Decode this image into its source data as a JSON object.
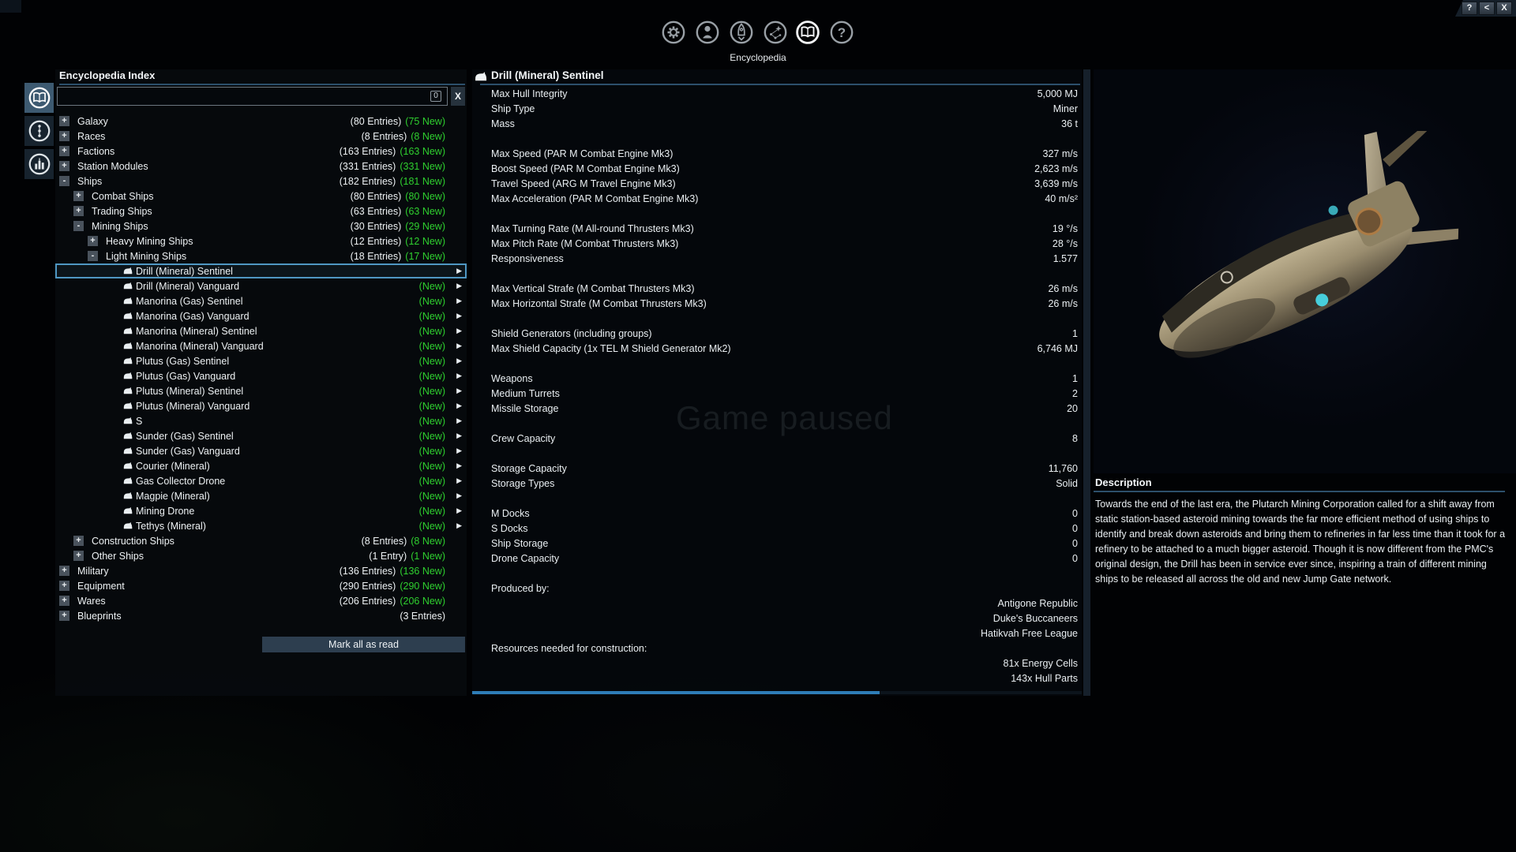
{
  "window": {
    "controls": [
      "?",
      "<",
      "X"
    ],
    "paused_text": "Game paused"
  },
  "menu": {
    "label": "Encyclopedia",
    "icons": [
      "gear-icon",
      "person-icon",
      "rocket-icon",
      "starmap-icon",
      "open-book-icon",
      "help-icon"
    ],
    "active_icon": "open-book-icon"
  },
  "sidebar_tabs": [
    "encyclopedia-book-icon",
    "waypoint-dots-icon",
    "landmark-icon"
  ],
  "index": {
    "title": "Encyclopedia Index",
    "search": {
      "value": "",
      "badge": "0",
      "clear_label": "X"
    },
    "mark_all_label": "Mark all as read",
    "tree": [
      {
        "label": "Galaxy",
        "level": 0,
        "expander": "+",
        "ship": false,
        "entries": "(80 Entries)",
        "new_count": "(75 New)",
        "selected": false,
        "arrow": false
      },
      {
        "label": "Races",
        "level": 0,
        "expander": "+",
        "ship": false,
        "entries": "(8 Entries)",
        "new_count": "(8 New)",
        "selected": false,
        "arrow": false
      },
      {
        "label": "Factions",
        "level": 0,
        "expander": "+",
        "ship": false,
        "entries": "(163 Entries)",
        "new_count": "(163 New)",
        "selected": false,
        "arrow": false
      },
      {
        "label": "Station Modules",
        "level": 0,
        "expander": "+",
        "ship": false,
        "entries": "(331 Entries)",
        "new_count": "(331 New)",
        "selected": false,
        "arrow": false
      },
      {
        "label": "Ships",
        "level": 0,
        "expander": "-",
        "ship": false,
        "entries": "(182 Entries)",
        "new_count": "(181 New)",
        "selected": false,
        "arrow": false
      },
      {
        "label": "Combat Ships",
        "level": 1,
        "expander": "+",
        "ship": false,
        "entries": "(80 Entries)",
        "new_count": "(80 New)",
        "selected": false,
        "arrow": false
      },
      {
        "label": "Trading Ships",
        "level": 1,
        "expander": "+",
        "ship": false,
        "entries": "(63 Entries)",
        "new_count": "(63 New)",
        "selected": false,
        "arrow": false
      },
      {
        "label": "Mining Ships",
        "level": 1,
        "expander": "-",
        "ship": false,
        "entries": "(30 Entries)",
        "new_count": "(29 New)",
        "selected": false,
        "arrow": false
      },
      {
        "label": "Heavy Mining Ships",
        "level": 2,
        "expander": "+",
        "ship": false,
        "entries": "(12 Entries)",
        "new_count": "(12 New)",
        "selected": false,
        "arrow": false
      },
      {
        "label": "Light Mining Ships",
        "level": 2,
        "expander": "-",
        "ship": false,
        "entries": "(18 Entries)",
        "new_count": "(17 New)",
        "selected": false,
        "arrow": false
      },
      {
        "label": "Drill (Mineral) Sentinel",
        "level": 3,
        "expander": "",
        "ship": true,
        "entries": "",
        "new_count": "",
        "selected": true,
        "arrow": true
      },
      {
        "label": "Drill (Mineral) Vanguard",
        "level": 3,
        "expander": "",
        "ship": true,
        "entries": "",
        "new_count": "(New)",
        "selected": false,
        "arrow": true
      },
      {
        "label": "Manorina (Gas) Sentinel",
        "level": 3,
        "expander": "",
        "ship": true,
        "entries": "",
        "new_count": "(New)",
        "selected": false,
        "arrow": true
      },
      {
        "label": "Manorina (Gas) Vanguard",
        "level": 3,
        "expander": "",
        "ship": true,
        "entries": "",
        "new_count": "(New)",
        "selected": false,
        "arrow": true
      },
      {
        "label": "Manorina (Mineral) Sentinel",
        "level": 3,
        "expander": "",
        "ship": true,
        "entries": "",
        "new_count": "(New)",
        "selected": false,
        "arrow": true
      },
      {
        "label": "Manorina (Mineral) Vanguard",
        "level": 3,
        "expander": "",
        "ship": true,
        "entries": "",
        "new_count": "(New)",
        "selected": false,
        "arrow": true
      },
      {
        "label": "Plutus (Gas) Sentinel",
        "level": 3,
        "expander": "",
        "ship": true,
        "entries": "",
        "new_count": "(New)",
        "selected": false,
        "arrow": true
      },
      {
        "label": "Plutus (Gas) Vanguard",
        "level": 3,
        "expander": "",
        "ship": true,
        "entries": "",
        "new_count": "(New)",
        "selected": false,
        "arrow": true
      },
      {
        "label": "Plutus (Mineral) Sentinel",
        "level": 3,
        "expander": "",
        "ship": true,
        "entries": "",
        "new_count": "(New)",
        "selected": false,
        "arrow": true
      },
      {
        "label": "Plutus (Mineral) Vanguard",
        "level": 3,
        "expander": "",
        "ship": true,
        "entries": "",
        "new_count": "(New)",
        "selected": false,
        "arrow": true
      },
      {
        "label": "S",
        "level": 3,
        "expander": "",
        "ship": true,
        "entries": "",
        "new_count": "(New)",
        "selected": false,
        "arrow": true
      },
      {
        "label": "Sunder (Gas) Sentinel",
        "level": 3,
        "expander": "",
        "ship": true,
        "entries": "",
        "new_count": "(New)",
        "selected": false,
        "arrow": true
      },
      {
        "label": "Sunder (Gas) Vanguard",
        "level": 3,
        "expander": "",
        "ship": true,
        "entries": "",
        "new_count": "(New)",
        "selected": false,
        "arrow": true
      },
      {
        "label": "Courier (Mineral)",
        "level": 3,
        "expander": "",
        "ship": true,
        "entries": "",
        "new_count": "(New)",
        "selected": false,
        "arrow": true
      },
      {
        "label": "Gas Collector Drone",
        "level": 3,
        "expander": "",
        "ship": true,
        "entries": "",
        "new_count": "(New)",
        "selected": false,
        "arrow": true
      },
      {
        "label": "Magpie (Mineral)",
        "level": 3,
        "expander": "",
        "ship": true,
        "entries": "",
        "new_count": "(New)",
        "selected": false,
        "arrow": true
      },
      {
        "label": "Mining Drone",
        "level": 3,
        "expander": "",
        "ship": true,
        "entries": "",
        "new_count": "(New)",
        "selected": false,
        "arrow": true
      },
      {
        "label": "Tethys (Mineral)",
        "level": 3,
        "expander": "",
        "ship": true,
        "entries": "",
        "new_count": "(New)",
        "selected": false,
        "arrow": true
      },
      {
        "label": "Construction Ships",
        "level": 1,
        "expander": "+",
        "ship": false,
        "entries": "(8 Entries)",
        "new_count": "(8 New)",
        "selected": false,
        "arrow": false
      },
      {
        "label": "Other Ships",
        "level": 1,
        "expander": "+",
        "ship": false,
        "entries": "(1 Entry)",
        "new_count": "(1 New)",
        "selected": false,
        "arrow": false
      },
      {
        "label": "Military",
        "level": 0,
        "expander": "+",
        "ship": false,
        "entries": "(136 Entries)",
        "new_count": "(136 New)",
        "selected": false,
        "arrow": false
      },
      {
        "label": "Equipment",
        "level": 0,
        "expander": "+",
        "ship": false,
        "entries": "(290 Entries)",
        "new_count": "(290 New)",
        "selected": false,
        "arrow": false
      },
      {
        "label": "Wares",
        "level": 0,
        "expander": "+",
        "ship": false,
        "entries": "(206 Entries)",
        "new_count": "(206 New)",
        "selected": false,
        "arrow": false
      },
      {
        "label": "Blueprints",
        "level": 0,
        "expander": "+",
        "ship": false,
        "entries": "(3 Entries)",
        "new_count": "",
        "selected": false,
        "arrow": false
      }
    ]
  },
  "detail": {
    "title": "Drill (Mineral) Sentinel",
    "stats": [
      {
        "label": "Max Hull Integrity",
        "value": "5,000 MJ"
      },
      {
        "label": "Ship Type",
        "value": "Miner"
      },
      {
        "label": "Mass",
        "value": "36 t"
      },
      {
        "label": "",
        "value": ""
      },
      {
        "label": "Max Speed (PAR M Combat Engine Mk3)",
        "value": "327 m/s"
      },
      {
        "label": "Boost Speed (PAR M Combat Engine Mk3)",
        "value": "2,623 m/s"
      },
      {
        "label": "Travel Speed (ARG M Travel Engine Mk3)",
        "value": "3,639 m/s"
      },
      {
        "label": "Max Acceleration (PAR M Combat Engine Mk3)",
        "value": "40 m/s²"
      },
      {
        "label": "",
        "value": ""
      },
      {
        "label": "Max Turning Rate (M All-round Thrusters Mk3)",
        "value": "19 °/s"
      },
      {
        "label": "Max Pitch Rate (M Combat Thrusters Mk3)",
        "value": "28 °/s"
      },
      {
        "label": "Responsiveness",
        "value": "1.577"
      },
      {
        "label": "",
        "value": ""
      },
      {
        "label": "Max Vertical Strafe (M Combat Thrusters Mk3)",
        "value": "26 m/s"
      },
      {
        "label": "Max Horizontal Strafe (M Combat Thrusters Mk3)",
        "value": "26 m/s"
      },
      {
        "label": "",
        "value": ""
      },
      {
        "label": "Shield Generators (including groups)",
        "value": "1"
      },
      {
        "label": "Max Shield Capacity (1x TEL M Shield Generator Mk2)",
        "value": "6,746 MJ"
      },
      {
        "label": "",
        "value": ""
      },
      {
        "label": "Weapons",
        "value": "1"
      },
      {
        "label": "Medium Turrets",
        "value": "2"
      },
      {
        "label": "Missile Storage",
        "value": "20"
      },
      {
        "label": "",
        "value": ""
      },
      {
        "label": "Crew Capacity",
        "value": "8"
      },
      {
        "label": "",
        "value": ""
      },
      {
        "label": "Storage Capacity",
        "value": "11,760"
      },
      {
        "label": "Storage Types",
        "value": "Solid"
      },
      {
        "label": "",
        "value": ""
      },
      {
        "label": "M Docks",
        "value": "0"
      },
      {
        "label": "S Docks",
        "value": "0"
      },
      {
        "label": "Ship Storage",
        "value": "0"
      },
      {
        "label": "Drone Capacity",
        "value": "0"
      },
      {
        "label": "",
        "value": ""
      },
      {
        "label": "Produced by:",
        "value": ""
      },
      {
        "label": "",
        "value": "Antigone Republic"
      },
      {
        "label": "",
        "value": "Duke's Buccaneers"
      },
      {
        "label": "",
        "value": "Hatikvah Free League"
      },
      {
        "label": "Resources needed for construction:",
        "value": ""
      },
      {
        "label": "",
        "value": "81x Energy Cells"
      },
      {
        "label": "",
        "value": "143x Hull Parts"
      }
    ]
  },
  "description": {
    "title": "Description",
    "text": "Towards the end of the last era, the Plutarch Mining Corporation called for a shift away from static station-based asteroid mining towards the far more efficient method of using ships to identify and break down asteroids and bring them to refineries in far less time than it took for a refinery to be attached to a much bigger asteroid. Though it is now different from the PMC's original design, the Drill has been in service ever since, inspiring a train of different mining ships to be released all across the old and new Jump Gate network."
  },
  "colors": {
    "new_green": "#2fd02f",
    "selection_blue": "#4f97c3",
    "rule_blue": "#2c4f6b",
    "scroll_thumb_blue": "#2e7db7"
  }
}
